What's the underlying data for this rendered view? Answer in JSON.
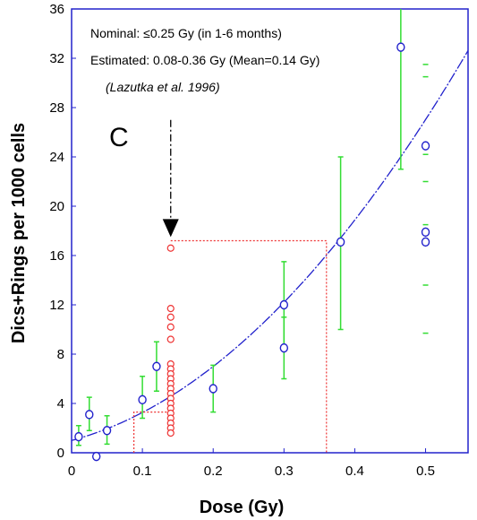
{
  "chart_data": {
    "type": "scatter",
    "title": "",
    "xlabel": "Dose (Gy)",
    "ylabel": "Dics+Rings per 1000 cells",
    "xlim": [
      0,
      0.56
    ],
    "ylim": [
      0,
      36
    ],
    "x_ticks": [
      "0",
      "0.1",
      "0.2",
      "0.3",
      "0.4",
      "0.5"
    ],
    "x_tick_values": [
      0,
      0.1,
      0.2,
      0.3,
      0.4,
      0.5
    ],
    "y_ticks": [
      "0",
      "4",
      "8",
      "12",
      "16",
      "20",
      "24",
      "28",
      "32",
      "36"
    ],
    "y_tick_values": [
      0,
      4,
      8,
      12,
      16,
      20,
      24,
      28,
      32,
      36
    ],
    "grid": false,
    "panel_label": "C",
    "annotations": {
      "nominal": "Nominal: ≤0.25 Gy (in 1-6 months)",
      "estimated": "Estimated: 0.08-0.36 Gy (Mean=0.14 Gy)",
      "reference": "(Lazutka et al. 1996)"
    },
    "colors": {
      "calibration_points": "#2222cc",
      "error_bars": "#33dd33",
      "fit_curve": "#2222cc",
      "individual_points": "#ee3333",
      "estimate_lines": "#ee3333",
      "arrow": "#000000",
      "frame": "#2222cc"
    },
    "calibration_points": [
      {
        "x": 0.01,
        "y": 1.3,
        "yerr_low": 0.6,
        "yerr_high": 2.2
      },
      {
        "x": 0.025,
        "y": 3.1,
        "yerr_low": 1.8,
        "yerr_high": 4.5
      },
      {
        "x": 0.035,
        "y": -0.3
      },
      {
        "x": 0.05,
        "y": 1.8,
        "yerr_low": 0.7,
        "yerr_high": 3.0
      },
      {
        "x": 0.1,
        "y": 4.3,
        "yerr_low": 2.8,
        "yerr_high": 6.2
      },
      {
        "x": 0.12,
        "y": 7.0,
        "yerr_low": 5.0,
        "yerr_high": 9.0
      },
      {
        "x": 0.2,
        "y": 5.2,
        "yerr_low": 3.3,
        "yerr_high": 7.1
      },
      {
        "x": 0.3,
        "y": 12.0,
        "yerr_low": 8.5,
        "yerr_high": 15.5
      },
      {
        "x": 0.3,
        "y": 8.5,
        "yerr_low": 6.0,
        "yerr_high": 11.0
      },
      {
        "x": 0.38,
        "y": 17.1,
        "yerr_low": 10.0,
        "yerr_high": 24.0
      },
      {
        "x": 0.465,
        "y": 32.9,
        "yerr_low": 23.0,
        "yerr_high": 36.0
      },
      {
        "x": 0.5,
        "y": 24.9
      },
      {
        "x": 0.5,
        "y": 17.9
      },
      {
        "x": 0.5,
        "y": 17.1
      }
    ],
    "dashed_error_marks": [
      {
        "x": 0.5,
        "values": [
          31.5,
          30.5,
          24.2,
          22.0,
          18.5,
          13.6,
          9.7
        ]
      }
    ],
    "individual_points": {
      "x": 0.14,
      "values": [
        16.6,
        11.7,
        11.0,
        10.2,
        9.2,
        7.2,
        6.8,
        6.4,
        6.0,
        5.6,
        5.2,
        4.8,
        4.4,
        4.0,
        3.6,
        3.2,
        2.8,
        2.4,
        2.0,
        1.6
      ]
    },
    "fit_curve": {
      "equation": "y = c + a*x + b*x^2",
      "c": 1.0,
      "a": 15.3,
      "b": 73.5
    },
    "estimate_lines": {
      "mean": {
        "x": 0.14,
        "y": 3.3
      },
      "high": {
        "x": 0.36,
        "y": 17.2
      },
      "low_x": 0.088
    },
    "arrow": {
      "x": 0.14,
      "y_start": 27.0,
      "y_end": 17.5
    }
  }
}
